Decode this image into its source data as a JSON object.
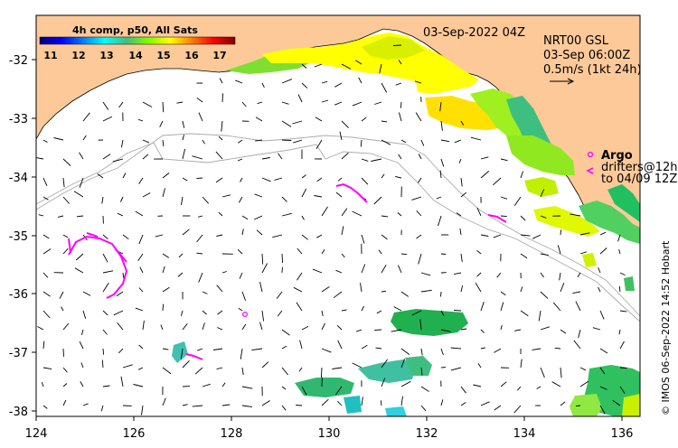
{
  "header": {
    "colorbar_title": "4h comp, p50, All Sats",
    "timestamp": "03-Sep-2022 04Z"
  },
  "colorbar": {
    "ticks": [
      "11",
      "12",
      "13",
      "14",
      "15",
      "16",
      "17"
    ],
    "stops": [
      "#00007f",
      "#0000ff",
      "#007fff",
      "#00ffff",
      "#3fbf7f",
      "#7fff00",
      "#ffff00",
      "#ff7f00",
      "#ff0000",
      "#7f0000"
    ]
  },
  "current_info": {
    "line1": "NRT00 GSL",
    "line2": "03-Sep 06:00Z",
    "line3": "0.5m/s (1kt 24h)"
  },
  "argo_legend": {
    "title": "Argo",
    "line1": "drifters@12h",
    "line2": "to 04/09 12Z"
  },
  "credit": "© IMOS 06-Sep-2022 14:52 Hobart",
  "axes": {
    "x_ticks": [
      "124",
      "126",
      "128",
      "130",
      "132",
      "134",
      "136"
    ],
    "y_ticks": [
      "-32",
      "-33",
      "-34",
      "-35",
      "-36",
      "-37",
      "-38"
    ]
  },
  "colors": {
    "land": "#fdc999",
    "ocean": "#ffffff",
    "argo": "#ff00ff",
    "contour": "#aaaaaa"
  }
}
